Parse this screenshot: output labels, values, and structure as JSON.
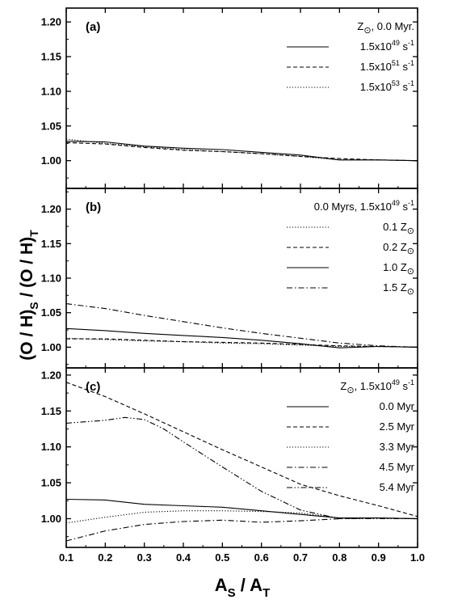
{
  "figure": {
    "ylabel_main": "(O / H)",
    "ylabel_sub1": "S",
    "ylabel_mid": " / (O / H)",
    "ylabel_sub2": "T",
    "xlabel_main1": "A",
    "xlabel_sub1": "S",
    "xlabel_mid": " / A",
    "xlabel_sub2": "T"
  },
  "chart_data": [
    {
      "type": "line",
      "panel_label": "(a)",
      "xlim": [
        0.1,
        1.0
      ],
      "ylim": [
        0.96,
        1.22
      ],
      "yticks": [
        "1.00",
        "1.05",
        "1.10",
        "1.15",
        "1.20"
      ],
      "xticks": [],
      "legend_position": "top-right",
      "legend_title": {
        "pre": "Z",
        "sym": "⊙",
        "post": ", 0.0 Myr."
      },
      "series": [
        {
          "name": {
            "pre": "1.5x10",
            "sup": "49",
            "post": " s",
            "sup2": "-1"
          },
          "style": "solid",
          "x": [
            0.1,
            0.2,
            0.3,
            0.4,
            0.5,
            0.6,
            0.7,
            0.8,
            0.9,
            1.0
          ],
          "y": [
            1.028,
            1.027,
            1.021,
            1.018,
            1.016,
            1.012,
            1.008,
            1.001,
            1.001,
            1.0
          ]
        },
        {
          "name": {
            "pre": "1.5x10",
            "sup": "51",
            "post": " s",
            "sup2": "-1"
          },
          "style": "dashed",
          "x": [
            0.1,
            0.2,
            0.3,
            0.4,
            0.5,
            0.6,
            0.7,
            0.8,
            0.9,
            1.0
          ],
          "y": [
            1.026,
            1.024,
            1.019,
            1.015,
            1.013,
            1.01,
            1.006,
            1.003,
            1.001,
            1.0
          ]
        },
        {
          "name": {
            "pre": "1.5x10",
            "sup": "53",
            "post": " s",
            "sup2": "-1"
          },
          "style": "dotted",
          "x": [
            0.1,
            0.2,
            0.3,
            0.4,
            0.5,
            0.6,
            0.7,
            0.8,
            0.9,
            1.0
          ],
          "y": [
            1.031,
            1.025,
            1.02,
            1.016,
            1.013,
            1.01,
            1.006,
            1.001,
            1.001,
            1.0
          ]
        }
      ]
    },
    {
      "type": "line",
      "panel_label": "(b)",
      "xlim": [
        0.1,
        1.0
      ],
      "ylim": [
        0.97,
        1.23
      ],
      "yticks": [
        "1.00",
        "1.05",
        "1.10",
        "1.15",
        "1.20"
      ],
      "xticks": [],
      "legend_position": "top-right",
      "legend_title": {
        "pre": "0.0 Myrs, 1.5x10",
        "sup": "49",
        "post": " s",
        "sup2": "-1"
      },
      "series": [
        {
          "name": {
            "pre": "0.1 Z",
            "sym": "⊙"
          },
          "style": "dotted",
          "x": [
            0.1,
            0.2,
            0.3,
            0.4,
            0.5,
            0.6,
            0.7,
            0.8,
            0.9,
            1.0
          ],
          "y": [
            1.013,
            1.011,
            1.009,
            1.008,
            1.006,
            1.005,
            1.003,
            1.001,
            1.001,
            1.0
          ]
        },
        {
          "name": {
            "pre": "0.2 Z",
            "sym": "⊙"
          },
          "style": "dashed",
          "x": [
            0.1,
            0.2,
            0.3,
            0.4,
            0.5,
            0.6,
            0.7,
            0.8,
            0.9,
            1.0
          ],
          "y": [
            1.012,
            1.012,
            1.01,
            1.008,
            1.007,
            1.006,
            1.004,
            1.002,
            1.001,
            1.0
          ]
        },
        {
          "name": {
            "pre": "1.0 Z",
            "sym": "⊙"
          },
          "style": "solid",
          "x": [
            0.1,
            0.2,
            0.3,
            0.4,
            0.5,
            0.6,
            0.7,
            0.8,
            0.9,
            1.0
          ],
          "y": [
            1.027,
            1.024,
            1.02,
            1.017,
            1.014,
            1.01,
            1.005,
            0.999,
            1.001,
            1.0
          ]
        },
        {
          "name": {
            "pre": "1.5 Z",
            "sym": "⊙"
          },
          "style": "dashdot",
          "x": [
            0.1,
            0.2,
            0.3,
            0.4,
            0.5,
            0.6,
            0.7,
            0.8,
            0.9,
            1.0
          ],
          "y": [
            1.063,
            1.056,
            1.046,
            1.037,
            1.028,
            1.02,
            1.013,
            1.006,
            1.002,
            1.0
          ]
        }
      ]
    },
    {
      "type": "line",
      "panel_label": "(c)",
      "xlim": [
        0.1,
        1.0
      ],
      "ylim": [
        0.96,
        1.21
      ],
      "yticks": [
        "1.00",
        "1.05",
        "1.10",
        "1.15",
        "1.20"
      ],
      "xticks": [
        "0.1",
        "0.2",
        "0.3",
        "0.4",
        "0.5",
        "0.6",
        "0.7",
        "0.8",
        "0.9",
        "1.0"
      ],
      "legend_position": "top-right",
      "legend_title": {
        "pre": "Z",
        "sym": "⊙",
        "post": ", 1.5x10",
        "sup": "49",
        "post2": " s",
        "sup2": "-1"
      },
      "series": [
        {
          "name": {
            "pre": "0.0 Myr"
          },
          "style": "solid",
          "x": [
            0.1,
            0.2,
            0.3,
            0.4,
            0.5,
            0.6,
            0.7,
            0.8,
            0.9,
            1.0
          ],
          "y": [
            1.027,
            1.026,
            1.02,
            1.018,
            1.016,
            1.011,
            1.006,
            1.001,
            1.001,
            1.0
          ]
        },
        {
          "name": {
            "pre": "2.5 Myr"
          },
          "style": "dashed",
          "x": [
            0.1,
            0.2,
            0.3,
            0.4,
            0.5,
            0.6,
            0.7,
            0.8,
            0.9,
            1.0
          ],
          "y": [
            1.19,
            1.17,
            1.146,
            1.121,
            1.096,
            1.072,
            1.048,
            1.032,
            1.018,
            1.003
          ]
        },
        {
          "name": {
            "pre": "3.3 Myr"
          },
          "style": "dotted",
          "x": [
            0.1,
            0.2,
            0.3,
            0.4,
            0.5,
            0.6,
            0.7,
            0.8,
            0.9,
            1.0
          ],
          "y": [
            0.994,
            1.002,
            1.009,
            1.011,
            1.011,
            1.01,
            1.008,
            1.001,
            1.001,
            1.0
          ]
        },
        {
          "name": {
            "pre": "4.5 Myr"
          },
          "style": "dashdot",
          "x": [
            0.1,
            0.2,
            0.3,
            0.4,
            0.5,
            0.6,
            0.7,
            0.8,
            0.9,
            1.0
          ],
          "y": [
            0.969,
            0.983,
            0.992,
            0.996,
            0.998,
            0.995,
            0.997,
            1.0,
            1.001,
            1.0
          ]
        },
        {
          "name": {
            "pre": "5.4 Myr"
          },
          "style": "dashdotdot",
          "x": [
            0.1,
            0.15,
            0.2,
            0.25,
            0.3,
            0.35,
            0.4,
            0.5,
            0.6,
            0.7,
            0.8,
            0.9,
            1.0
          ],
          "y": [
            1.133,
            1.135,
            1.137,
            1.141,
            1.138,
            1.125,
            1.107,
            1.072,
            1.038,
            1.012,
            1.0,
            1.0,
            1.0
          ]
        }
      ]
    }
  ]
}
